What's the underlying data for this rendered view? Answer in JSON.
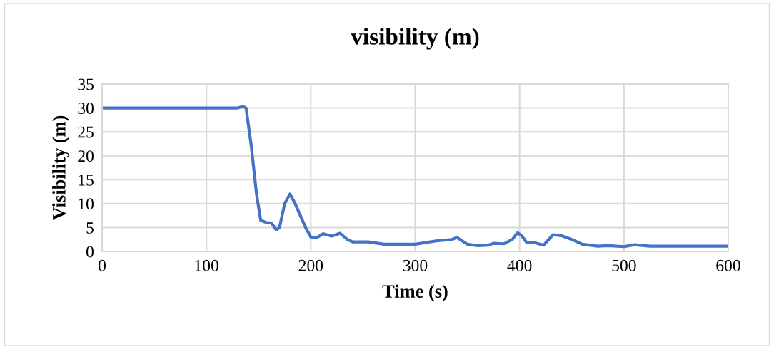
{
  "chart_data": {
    "type": "line",
    "title": "visibility (m)",
    "xlabel": "Time (s)",
    "ylabel": "Visibility (m)",
    "x": [
      0,
      130,
      135,
      138,
      143,
      148,
      152,
      158,
      162,
      167,
      170,
      175,
      180,
      185,
      190,
      195,
      200,
      205,
      212,
      220,
      228,
      235,
      240,
      255,
      270,
      290,
      300,
      320,
      335,
      340,
      350,
      360,
      370,
      375,
      385,
      393,
      398,
      402,
      407,
      415,
      423,
      432,
      440,
      450,
      460,
      475,
      485,
      500,
      510,
      525,
      545,
      560,
      575,
      600
    ],
    "series": [
      {
        "color": "#4472c4",
        "values": [
          30,
          30,
          30.3,
          30,
          22,
          12,
          6.5,
          6,
          6,
          4.5,
          5,
          10,
          12,
          10,
          7.5,
          5,
          3,
          2.8,
          3.7,
          3.2,
          3.8,
          2.5,
          2.0,
          2.0,
          1.5,
          1.5,
          1.5,
          2.2,
          2.5,
          2.9,
          1.5,
          1.2,
          1.3,
          1.7,
          1.6,
          2.5,
          3.9,
          3.3,
          1.8,
          1.8,
          1.3,
          3.5,
          3.3,
          2.5,
          1.5,
          1.1,
          1.2,
          1.0,
          1.4,
          1.1,
          1.1,
          1.1,
          1.1,
          1.1
        ]
      }
    ],
    "xlim": [
      0,
      600
    ],
    "xticks": [
      0,
      100,
      200,
      300,
      400,
      500,
      600
    ],
    "ylim": [
      0,
      35
    ],
    "yticks": [
      0,
      5,
      10,
      15,
      20,
      25,
      30,
      35
    ],
    "grid": true,
    "legend": false,
    "marker": "none",
    "line_style": "solid"
  }
}
